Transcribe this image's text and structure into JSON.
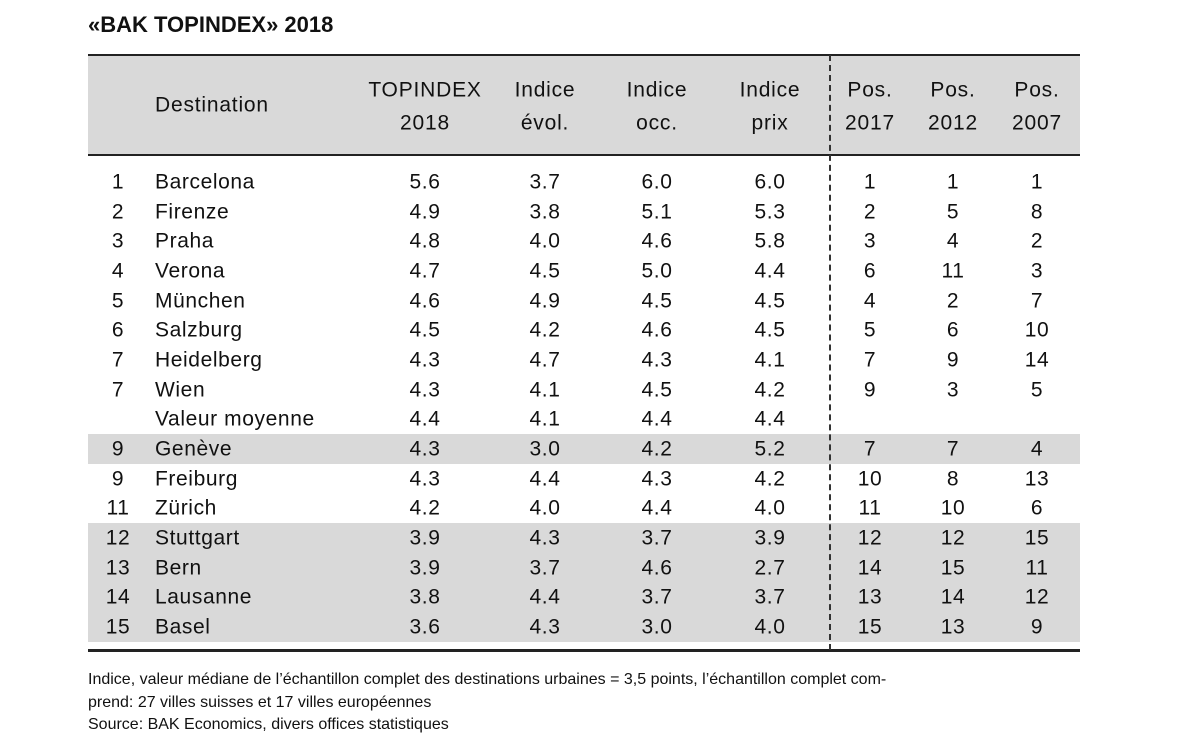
{
  "title": "«BAK TOPINDEX» 2018",
  "table": {
    "headers": [
      [
        "Destination"
      ],
      [
        "TOPINDEX",
        "2018"
      ],
      [
        "Indice",
        "évol."
      ],
      [
        "Indice",
        "occ."
      ],
      [
        "Indice",
        "prix"
      ],
      [
        "Pos.",
        "2017"
      ],
      [
        "Pos.",
        "2012"
      ],
      [
        "Pos.",
        "2007"
      ]
    ],
    "rows": [
      [
        "1",
        "Barcelona",
        "5.6",
        "3.7",
        "6.0",
        "6.0",
        "1",
        "1",
        "1"
      ],
      [
        "2",
        "Firenze",
        "4.9",
        "3.8",
        "5.1",
        "5.3",
        "2",
        "5",
        "8"
      ],
      [
        "3",
        "Praha",
        "4.8",
        "4.0",
        "4.6",
        "5.8",
        "3",
        "4",
        "2"
      ],
      [
        "4",
        "Verona",
        "4.7",
        "4.5",
        "5.0",
        "4.4",
        "6",
        "11",
        "3"
      ],
      [
        "5",
        "München",
        "4.6",
        "4.9",
        "4.5",
        "4.5",
        "4",
        "2",
        "7"
      ],
      [
        "6",
        "Salzburg",
        "4.5",
        "4.2",
        "4.6",
        "4.5",
        "5",
        "6",
        "10"
      ],
      [
        "7",
        "Heidelberg",
        "4.3",
        "4.7",
        "4.3",
        "4.1",
        "7",
        "9",
        "14"
      ],
      [
        "7",
        "Wien",
        "4.3",
        "4.1",
        "4.5",
        "4.2",
        "9",
        "3",
        "5"
      ],
      [
        null,
        "Valeur moyenne",
        "4.4",
        "4.1",
        "4.4",
        "4.4",
        null,
        null,
        null
      ],
      [
        "9",
        "Genève",
        "4.3",
        "3.0",
        "4.2",
        "5.2",
        "7",
        "7",
        "4"
      ],
      [
        "9",
        "Freiburg",
        "4.3",
        "4.4",
        "4.3",
        "4.2",
        "10",
        "8",
        "13"
      ],
      [
        "11",
        "Zürich",
        "4.2",
        "4.0",
        "4.4",
        "4.0",
        "11",
        "10",
        "6"
      ],
      [
        "12",
        "Stuttgart",
        "3.9",
        "4.3",
        "3.7",
        "3.9",
        "12",
        "12",
        "15"
      ],
      [
        "13",
        "Bern",
        "3.9",
        "3.7",
        "4.6",
        "2.7",
        "14",
        "15",
        "11"
      ],
      [
        "14",
        "Lausanne",
        "3.8",
        "4.4",
        "3.7",
        "3.7",
        "13",
        "14",
        "12"
      ],
      [
        "15",
        "Basel",
        "3.6",
        "4.3",
        "3.0",
        "4.0",
        "15",
        "13",
        "9"
      ]
    ],
    "shaded_rows": [
      9,
      12,
      13,
      14,
      15
    ]
  },
  "notes": [
    "Indice, valeur médiane de l’échantillon complet des destinations urbaines = 3,5 points, l’échantillon complet com-",
    "prend: 27 villes suisses et 17 villes européennes",
    "Source: BAK Economics, divers offices statistiques"
  ]
}
